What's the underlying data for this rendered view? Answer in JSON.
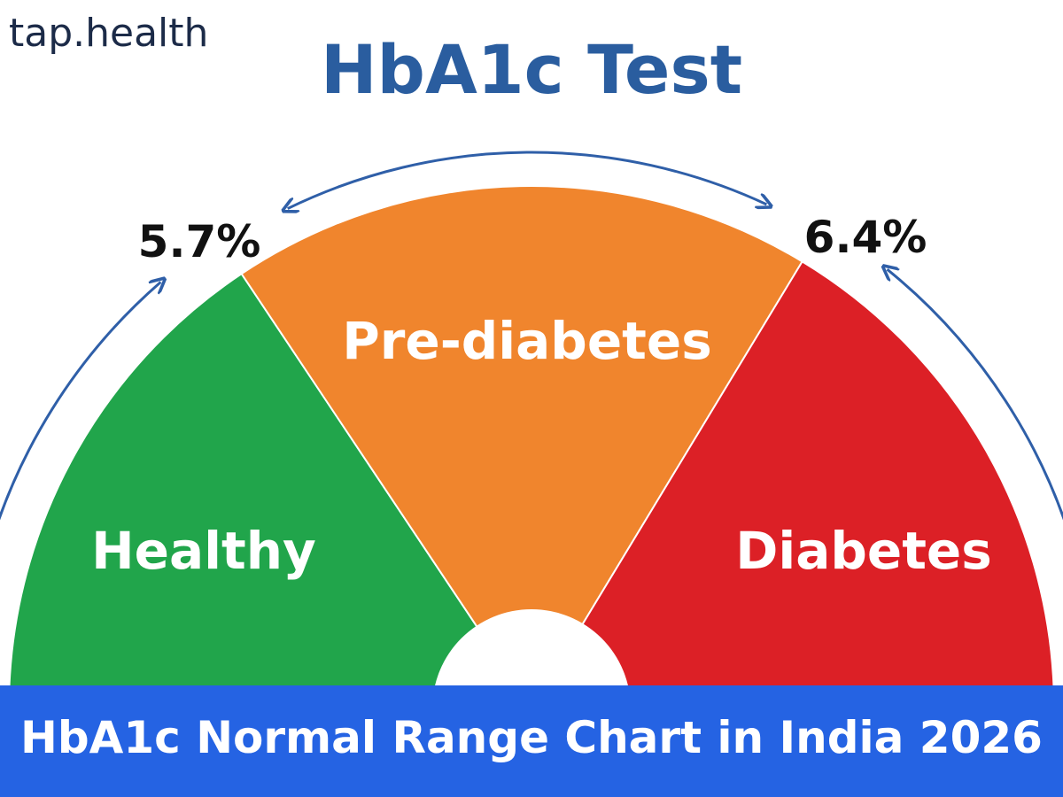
{
  "logo": "tap.health",
  "title": "HbA1c Test",
  "gauge": {
    "segments": [
      "Healthy",
      "Pre-diabetes",
      "Diabetes"
    ],
    "thresholds": [
      "5.7%",
      "6.4%"
    ]
  },
  "banner": "HbA1c Normal Range Chart in India 2026"
}
